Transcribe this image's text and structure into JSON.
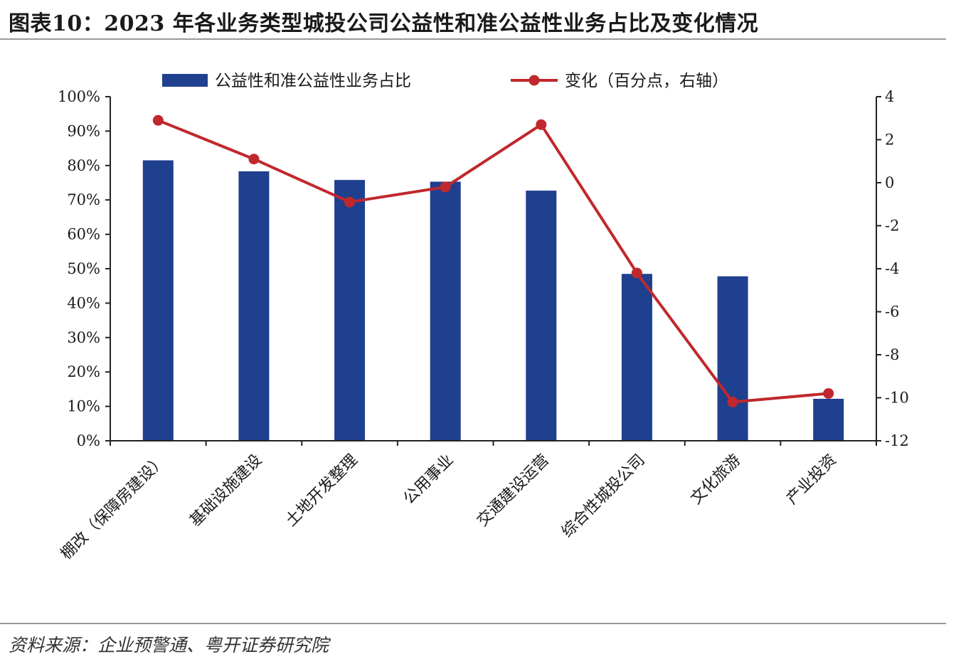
{
  "header": {
    "title": "图表10：2023 年各业务类型城投公司公益性和准公益性业务占比及变化情况"
  },
  "footer": {
    "source": "资料来源：企业预警通、粤开证券研究院"
  },
  "chart_data": {
    "type": "bar+line",
    "categories": [
      "棚改（保障房建设）",
      "基础设施建设",
      "土地开发整理",
      "公用事业",
      "交通建设运营",
      "综合性城投公司",
      "文化旅游",
      "产业投资"
    ],
    "series": [
      {
        "name": "公益性和准公益性业务占比",
        "type": "bar",
        "axis": "left",
        "color": "#1f3f8f",
        "values": [
          81.5,
          78.3,
          75.8,
          75.3,
          72.7,
          48.5,
          47.8,
          12.2
        ]
      },
      {
        "name": "变化（百分点，右轴）",
        "type": "line",
        "axis": "right",
        "color": "#c0282d",
        "values": [
          2.9,
          1.1,
          -0.9,
          -0.2,
          2.7,
          -4.2,
          -10.2,
          -9.8
        ]
      }
    ],
    "y_left": {
      "min": 0,
      "max": 100,
      "step": 10,
      "ticks": [
        "0%",
        "10%",
        "20%",
        "30%",
        "40%",
        "50%",
        "60%",
        "70%",
        "80%",
        "90%",
        "100%"
      ]
    },
    "y_right": {
      "min": -12,
      "max": 4,
      "step": 2,
      "ticks": [
        "-12",
        "-10",
        "-8",
        "-6",
        "-4",
        "-2",
        "0",
        "2",
        "4"
      ]
    },
    "legend": "top-center",
    "grid": false
  }
}
